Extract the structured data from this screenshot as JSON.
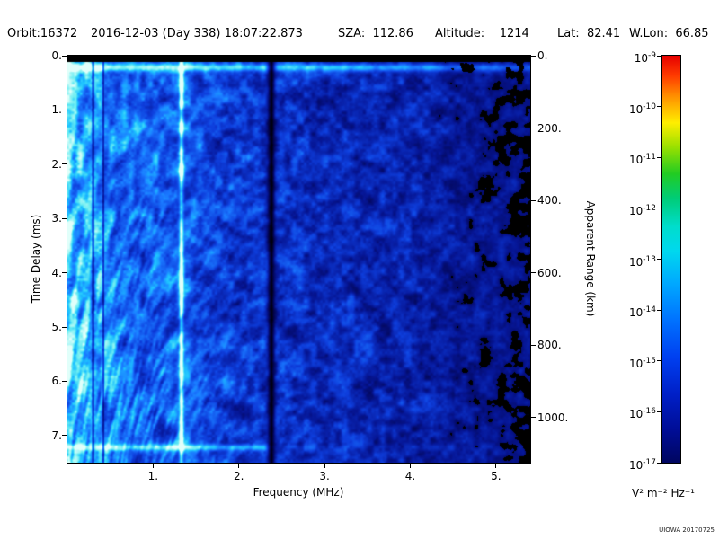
{
  "header": {
    "orbit": "Orbit:16372",
    "datetime": "2016-12-03 (Day 338) 18:07:22.873",
    "sza": "SZA:  112.86",
    "altitude": "Altitude:    1214",
    "lat": "Lat:  82.41",
    "wlon": "W.Lon:  66.85"
  },
  "credit": "UIOWA 20170725",
  "chart_data": {
    "type": "heatmap",
    "title": "",
    "xlabel": "Frequency (MHz)",
    "ylabel_left": "Time Delay (ms)",
    "ylabel_right": "Apparent Range (km)",
    "x_ticks": [
      "1.",
      "2.",
      "3.",
      "4.",
      "5."
    ],
    "x_range": [
      0,
      5.4
    ],
    "y_ticks_left": [
      "0.",
      "1.",
      "2.",
      "3.",
      "4.",
      "5.",
      "6.",
      "7."
    ],
    "y_range": [
      0,
      7.5
    ],
    "y_ticks_right": [
      "0.",
      "200.",
      "400.",
      "600.",
      "800.",
      "1000."
    ],
    "y_right_range": [
      0,
      1125
    ],
    "grid": false,
    "legend_position": "right-colorbar",
    "colorbar": {
      "base": "10",
      "exponents": [
        -9,
        -10,
        -11,
        -12,
        -13,
        -14,
        -15,
        -16,
        -17
      ],
      "unit": "V² m⁻² Hz⁻¹",
      "gradient": [
        {
          "p": 0.0,
          "c": "#e60000"
        },
        {
          "p": 0.05,
          "c": "#ff3c00"
        },
        {
          "p": 0.1,
          "c": "#ff9000"
        },
        {
          "p": 0.165,
          "c": "#ffee00"
        },
        {
          "p": 0.225,
          "c": "#99e000"
        },
        {
          "p": 0.29,
          "c": "#22cc22"
        },
        {
          "p": 0.35,
          "c": "#00cc77"
        },
        {
          "p": 0.42,
          "c": "#00ddcc"
        },
        {
          "p": 0.48,
          "c": "#00d8ee"
        },
        {
          "p": 0.56,
          "c": "#00a8ff"
        },
        {
          "p": 0.65,
          "c": "#0072ff"
        },
        {
          "p": 0.74,
          "c": "#0040f0"
        },
        {
          "p": 0.83,
          "c": "#0020c8"
        },
        {
          "p": 0.92,
          "c": "#000d96"
        },
        {
          "p": 1.0,
          "c": "#000660"
        }
      ]
    },
    "heat_colormap": [
      {
        "v": 0.0,
        "c": [
          0,
          0,
          0
        ]
      },
      {
        "v": 0.05,
        "c": [
          2,
          2,
          70
        ]
      },
      {
        "v": 0.17,
        "c": [
          6,
          22,
          150
        ]
      },
      {
        "v": 0.33,
        "c": [
          14,
          62,
          220
        ]
      },
      {
        "v": 0.5,
        "c": [
          26,
          120,
          255
        ]
      },
      {
        "v": 0.66,
        "c": [
          30,
          195,
          255
        ]
      },
      {
        "v": 0.8,
        "c": [
          110,
          238,
          242
        ]
      },
      {
        "v": 1.0,
        "c": [
          225,
          255,
          250
        ]
      }
    ],
    "features": {
      "bright_vertical_line_mhz": 1.33,
      "bright_region_mhz": 1.35,
      "dark_vertical_band_mhz": 2.38,
      "dark_vertical_lines_mhz": [
        0.3,
        0.42
      ],
      "top_black_band_ms": 0.12,
      "bright_horizontal_line_ms": 0.22,
      "bottom_bright_line_ms": 7.22,
      "blackout_start_mhz": 3.9
    }
  }
}
